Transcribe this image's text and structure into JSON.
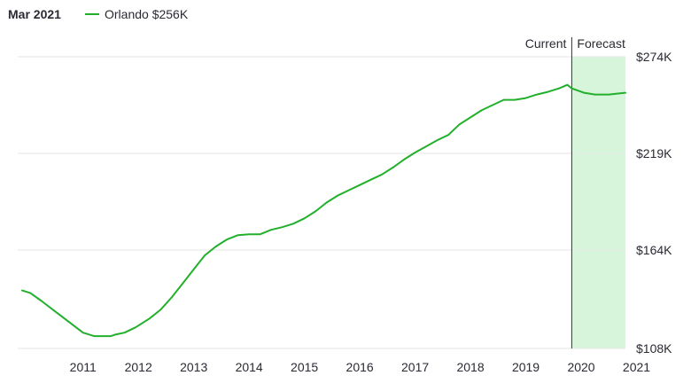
{
  "header": {
    "date": "Mar 2021",
    "legend_label": "Orlando $256K"
  },
  "colors": {
    "series": "#22b02c",
    "forecast_fill": "#d6f5da",
    "grid": "#e6e6e6",
    "divider": "#333333"
  },
  "chart_data": {
    "type": "line",
    "title": "",
    "xlabel": "",
    "ylabel": "",
    "x_ticks": [
      "2011",
      "2012",
      "2013",
      "2014",
      "2015",
      "2016",
      "2017",
      "2018",
      "2019",
      "2020",
      "2021"
    ],
    "y_ticks": [
      "$274K",
      "$219K",
      "$164K",
      "$108K"
    ],
    "y_tick_values": [
      274,
      219,
      164,
      108
    ],
    "ylim": [
      108,
      274
    ],
    "xlim": [
      2010.4,
      2021.3
    ],
    "current_label": "Current",
    "forecast_label": "Forecast",
    "forecast_start": 2020.33,
    "grid": true,
    "series": [
      {
        "name": "Orlando",
        "x": [
          2010.4,
          2010.55,
          2010.75,
          2011.0,
          2011.25,
          2011.5,
          2011.7,
          2012.0,
          2012.1,
          2012.25,
          2012.45,
          2012.7,
          2012.9,
          2013.1,
          2013.3,
          2013.5,
          2013.7,
          2013.9,
          2014.1,
          2014.3,
          2014.5,
          2014.7,
          2014.9,
          2015.1,
          2015.3,
          2015.5,
          2015.7,
          2015.9,
          2016.1,
          2016.3,
          2016.5,
          2016.7,
          2016.9,
          2017.1,
          2017.3,
          2017.5,
          2017.7,
          2017.9,
          2018.1,
          2018.3,
          2018.5,
          2018.7,
          2018.9,
          2019.1,
          2019.3,
          2019.5,
          2019.7,
          2019.9,
          2020.1,
          2020.25,
          2020.33,
          2020.55,
          2020.75,
          2021.0,
          2021.15,
          2021.3
        ],
        "y": [
          141,
          139.5,
          135,
          129,
          123,
          117,
          115,
          115,
          116,
          117,
          120,
          125,
          130,
          137,
          145,
          153,
          161,
          166,
          170,
          172.5,
          173,
          173,
          175.5,
          177,
          179,
          182,
          186,
          191,
          195,
          198,
          201,
          204,
          207,
          211,
          215.5,
          219.5,
          223,
          226.5,
          229.5,
          235.5,
          239.5,
          243.5,
          246.5,
          249.5,
          249.5,
          250.5,
          252.5,
          254,
          256,
          258,
          256,
          253.5,
          252.5,
          252.5,
          253,
          253.5
        ]
      }
    ]
  }
}
